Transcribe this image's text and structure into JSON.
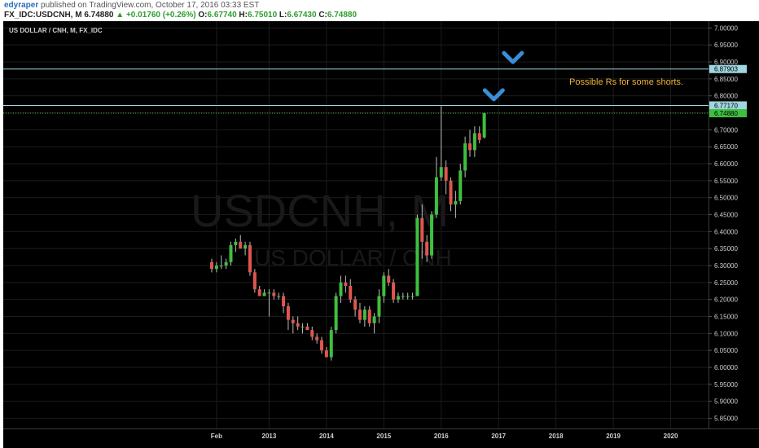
{
  "header": {
    "author": "edyraper",
    "published": "published on TradingView.com, October 17, 2016 03:33 EST",
    "symbol": "FX_IDC:USDCNH, M",
    "last": "6.74880",
    "change": "+0.01760 (+0.26%)",
    "o_label": "O:",
    "o_value": "6.67740",
    "h_label": "H:",
    "h_value": "6.75010",
    "l_label": "L:",
    "l_value": "6.67430",
    "c_label": "C:",
    "c_value": "6.74880"
  },
  "colors": {
    "background": "#000000",
    "up": "#3fbf3f",
    "down": "#e0554f",
    "resistance": "#9fd6df",
    "annotation": "#f0b43a",
    "arrow": "#3a8ed8"
  },
  "chart_data": {
    "type": "candlestick",
    "title": "US DOLLAR / CNH, M, FX_IDC",
    "watermark_symbol": "USDCNH, M",
    "watermark_name": "US DOLLAR / CNH",
    "ylim": [
      5.82,
      7.02
    ],
    "y_ticks": [
      "7.00000",
      "6.95000",
      "6.90000",
      "6.85000",
      "6.80000",
      "6.75000",
      "6.70000",
      "6.65000",
      "6.60000",
      "6.55000",
      "6.50000",
      "6.45000",
      "6.40000",
      "6.35000",
      "6.30000",
      "6.25000",
      "6.20000",
      "6.15000",
      "6.10000",
      "6.05000",
      "6.00000",
      "5.95000",
      "5.90000",
      "5.85000"
    ],
    "x_start": "2012-01",
    "x_end": "2021-01",
    "x_ticks": [
      {
        "date": "2012-02",
        "label": "Feb"
      },
      {
        "date": "2013-01",
        "label": "2013"
      },
      {
        "date": "2014-01",
        "label": "2014"
      },
      {
        "date": "2015-01",
        "label": "2015"
      },
      {
        "date": "2016-01",
        "label": "2016"
      },
      {
        "date": "2017-01",
        "label": "2017"
      },
      {
        "date": "2018-01",
        "label": "2018"
      },
      {
        "date": "2019-01",
        "label": "2019"
      },
      {
        "date": "2020-01",
        "label": "2020"
      }
    ],
    "candles": [
      {
        "date": "2012-01",
        "o": 6.31,
        "h": 6.32,
        "l": 6.28,
        "c": 6.29
      },
      {
        "date": "2012-02",
        "o": 6.29,
        "h": 6.31,
        "l": 6.28,
        "c": 6.3
      },
      {
        "date": "2012-03",
        "o": 6.3,
        "h": 6.33,
        "l": 6.29,
        "c": 6.3
      },
      {
        "date": "2012-04",
        "o": 6.3,
        "h": 6.32,
        "l": 6.29,
        "c": 6.31
      },
      {
        "date": "2012-05",
        "o": 6.31,
        "h": 6.37,
        "l": 6.3,
        "c": 6.36
      },
      {
        "date": "2012-06",
        "o": 6.36,
        "h": 6.38,
        "l": 6.34,
        "c": 6.37
      },
      {
        "date": "2012-07",
        "o": 6.37,
        "h": 6.39,
        "l": 6.35,
        "c": 6.35
      },
      {
        "date": "2012-08",
        "o": 6.35,
        "h": 6.37,
        "l": 6.33,
        "c": 6.36
      },
      {
        "date": "2012-09",
        "o": 6.36,
        "h": 6.37,
        "l": 6.27,
        "c": 6.28
      },
      {
        "date": "2012-10",
        "o": 6.28,
        "h": 6.29,
        "l": 6.22,
        "c": 6.23
      },
      {
        "date": "2012-11",
        "o": 6.23,
        "h": 6.24,
        "l": 6.21,
        "c": 6.21
      },
      {
        "date": "2012-12",
        "o": 6.21,
        "h": 6.23,
        "l": 6.21,
        "c": 6.22
      },
      {
        "date": "2013-01",
        "o": 6.22,
        "h": 6.23,
        "l": 6.15,
        "c": 6.22
      },
      {
        "date": "2013-02",
        "o": 6.22,
        "h": 6.23,
        "l": 6.2,
        "c": 6.21
      },
      {
        "date": "2013-03",
        "o": 6.21,
        "h": 6.22,
        "l": 6.2,
        "c": 6.21
      },
      {
        "date": "2013-04",
        "o": 6.21,
        "h": 6.22,
        "l": 6.16,
        "c": 6.18
      },
      {
        "date": "2013-05",
        "o": 6.18,
        "h": 6.19,
        "l": 6.11,
        "c": 6.14
      },
      {
        "date": "2013-06",
        "o": 6.14,
        "h": 6.15,
        "l": 6.1,
        "c": 6.13
      },
      {
        "date": "2013-07",
        "o": 6.13,
        "h": 6.15,
        "l": 6.11,
        "c": 6.12
      },
      {
        "date": "2013-08",
        "o": 6.12,
        "h": 6.13,
        "l": 6.1,
        "c": 6.12
      },
      {
        "date": "2013-09",
        "o": 6.12,
        "h": 6.13,
        "l": 6.11,
        "c": 6.11
      },
      {
        "date": "2013-10",
        "o": 6.11,
        "h": 6.12,
        "l": 6.08,
        "c": 6.09
      },
      {
        "date": "2013-11",
        "o": 6.09,
        "h": 6.1,
        "l": 6.07,
        "c": 6.08
      },
      {
        "date": "2013-12",
        "o": 6.08,
        "h": 6.09,
        "l": 6.04,
        "c": 6.05
      },
      {
        "date": "2014-01",
        "o": 6.05,
        "h": 6.06,
        "l": 6.03,
        "c": 6.03
      },
      {
        "date": "2014-02",
        "o": 6.03,
        "h": 6.12,
        "l": 6.02,
        "c": 6.11
      },
      {
        "date": "2014-03",
        "o": 6.11,
        "h": 6.22,
        "l": 6.1,
        "c": 6.21
      },
      {
        "date": "2014-04",
        "o": 6.21,
        "h": 6.27,
        "l": 6.19,
        "c": 6.25
      },
      {
        "date": "2014-05",
        "o": 6.25,
        "h": 6.27,
        "l": 6.22,
        "c": 6.24
      },
      {
        "date": "2014-06",
        "o": 6.24,
        "h": 6.26,
        "l": 6.19,
        "c": 6.2
      },
      {
        "date": "2014-07",
        "o": 6.2,
        "h": 6.21,
        "l": 6.15,
        "c": 6.17
      },
      {
        "date": "2014-08",
        "o": 6.17,
        "h": 6.19,
        "l": 6.13,
        "c": 6.14
      },
      {
        "date": "2014-09",
        "o": 6.14,
        "h": 6.18,
        "l": 6.12,
        "c": 6.17
      },
      {
        "date": "2014-10",
        "o": 6.17,
        "h": 6.18,
        "l": 6.12,
        "c": 6.13
      },
      {
        "date": "2014-11",
        "o": 6.13,
        "h": 6.16,
        "l": 6.1,
        "c": 6.15
      },
      {
        "date": "2014-12",
        "o": 6.15,
        "h": 6.23,
        "l": 6.13,
        "c": 6.21
      },
      {
        "date": "2015-01",
        "o": 6.21,
        "h": 6.28,
        "l": 6.19,
        "c": 6.27
      },
      {
        "date": "2015-02",
        "o": 6.27,
        "h": 6.29,
        "l": 6.24,
        "c": 6.25
      },
      {
        "date": "2015-03",
        "o": 6.25,
        "h": 6.26,
        "l": 6.19,
        "c": 6.2
      },
      {
        "date": "2015-04",
        "o": 6.2,
        "h": 6.22,
        "l": 6.19,
        "c": 6.21
      },
      {
        "date": "2015-05",
        "o": 6.21,
        "h": 6.22,
        "l": 6.2,
        "c": 6.21
      },
      {
        "date": "2015-06",
        "o": 6.21,
        "h": 6.22,
        "l": 6.2,
        "c": 6.21
      },
      {
        "date": "2015-07",
        "o": 6.21,
        "h": 6.22,
        "l": 6.2,
        "c": 6.21
      },
      {
        "date": "2015-08",
        "o": 6.21,
        "h": 6.45,
        "l": 6.21,
        "c": 6.44
      },
      {
        "date": "2015-09",
        "o": 6.44,
        "h": 6.48,
        "l": 6.32,
        "c": 6.37
      },
      {
        "date": "2015-10",
        "o": 6.37,
        "h": 6.39,
        "l": 6.31,
        "c": 6.33
      },
      {
        "date": "2015-11",
        "o": 6.33,
        "h": 6.46,
        "l": 6.32,
        "c": 6.45
      },
      {
        "date": "2015-12",
        "o": 6.45,
        "h": 6.62,
        "l": 6.44,
        "c": 6.56
      },
      {
        "date": "2016-01",
        "o": 6.56,
        "h": 6.77,
        "l": 6.55,
        "c": 6.59
      },
      {
        "date": "2016-02",
        "o": 6.59,
        "h": 6.61,
        "l": 6.51,
        "c": 6.55
      },
      {
        "date": "2016-03",
        "o": 6.55,
        "h": 6.56,
        "l": 6.46,
        "c": 6.48
      },
      {
        "date": "2016-04",
        "o": 6.48,
        "h": 6.52,
        "l": 6.44,
        "c": 6.49
      },
      {
        "date": "2016-05",
        "o": 6.49,
        "h": 6.6,
        "l": 6.48,
        "c": 6.58
      },
      {
        "date": "2016-06",
        "o": 6.58,
        "h": 6.68,
        "l": 6.56,
        "c": 6.66
      },
      {
        "date": "2016-07",
        "o": 6.66,
        "h": 6.7,
        "l": 6.62,
        "c": 6.64
      },
      {
        "date": "2016-08",
        "o": 6.64,
        "h": 6.71,
        "l": 6.62,
        "c": 6.69
      },
      {
        "date": "2016-09",
        "o": 6.69,
        "h": 6.71,
        "l": 6.66,
        "c": 6.67
      },
      {
        "date": "2016-10",
        "o": 6.6774,
        "h": 6.7501,
        "l": 6.6743,
        "c": 6.7488
      }
    ],
    "horizontal_lines": [
      {
        "value": 6.87903,
        "label": "6.87903"
      },
      {
        "value": 6.7717,
        "label": "6.77170"
      }
    ],
    "last_price": {
      "value": 6.7488,
      "label": "6.74880"
    },
    "annotation": {
      "text": "Possible Rs for some shorts."
    },
    "arrows": [
      {
        "date": "2017-04",
        "value": 6.895
      },
      {
        "date": "2016-12",
        "value": 6.785
      }
    ]
  }
}
